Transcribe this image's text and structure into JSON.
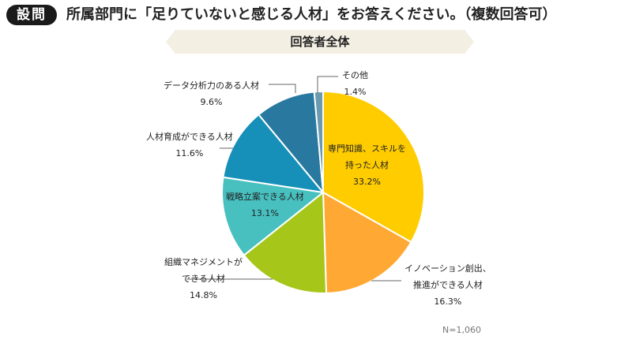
{
  "header": {
    "badge": "設問",
    "question": "所属部門に「足りていないと感じる人材」をお答えください。（複数回答可）"
  },
  "banner": "回答者全体",
  "chart_data": {
    "type": "pie",
    "title": "回答者全体",
    "start": "top, clockwise",
    "slices": [
      {
        "label": "専門知識、スキルを持った人材",
        "label_lines": [
          "専門知識、スキルを",
          "持った人材"
        ],
        "value": 33.2,
        "value_label": "33.2%",
        "color": "#FFCC00"
      },
      {
        "label": "イノベーション創出、推進ができる人材",
        "label_lines": [
          "イノベーション創出、",
          "推進ができる人材"
        ],
        "value": 16.3,
        "value_label": "16.3%",
        "color": "#FFA833"
      },
      {
        "label": "組織マネジメントができる人材",
        "label_lines": [
          "組織マネジメントが",
          "できる人材"
        ],
        "value": 14.8,
        "value_label": "14.8%",
        "color": "#A6C61A"
      },
      {
        "label": "戦略立案できる人材",
        "label_lines": [
          "戦略立案できる人材"
        ],
        "value": 13.1,
        "value_label": "13.1%",
        "color": "#48C0C0"
      },
      {
        "label": "人材育成ができる人材",
        "label_lines": [
          "人材育成ができる人材"
        ],
        "value": 11.6,
        "value_label": "11.6%",
        "color": "#1690B8"
      },
      {
        "label": "データ分析力のある人材",
        "label_lines": [
          "データ分析力のある人材"
        ],
        "value": 9.6,
        "value_label": "9.6%",
        "color": "#2878A0"
      },
      {
        "label": "その他",
        "label_lines": [
          "その他"
        ],
        "value": 1.4,
        "value_label": "1.4%",
        "color": "#6A9AB0"
      }
    ],
    "note": "N=1,060"
  }
}
